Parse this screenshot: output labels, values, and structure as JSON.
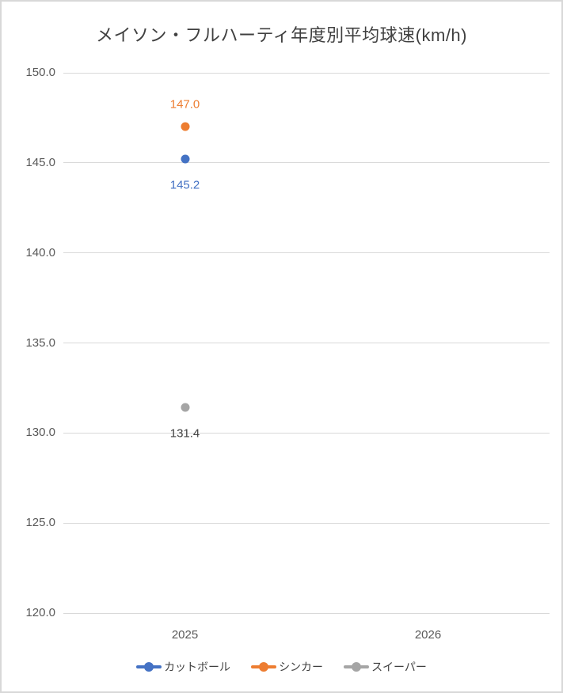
{
  "chart_data": {
    "type": "scatter",
    "title": "メイソン・フルハーティ年度別平均球速(km/h)",
    "categories": [
      "2025",
      "2026"
    ],
    "series": [
      {
        "name": "カットボール",
        "color": "#4472c4",
        "values": [
          145.2,
          null
        ],
        "data_labels": [
          "145.2",
          null
        ],
        "label_position": "below",
        "label_color": "#4472c4"
      },
      {
        "name": "シンカー",
        "color": "#ed7d31",
        "values": [
          147.0,
          null
        ],
        "data_labels": [
          "147.0",
          null
        ],
        "label_position": "above",
        "label_color": "#ed7d31"
      },
      {
        "name": "スイーパー",
        "color": "#a5a5a5",
        "values": [
          131.4,
          null
        ],
        "data_labels": [
          "131.4",
          null
        ],
        "label_position": "below",
        "label_color": "#404040"
      }
    ],
    "xlabel": "",
    "ylabel": "",
    "ylim": [
      120,
      150
    ],
    "ytick_step": 5,
    "ytick_labels": [
      "150.0",
      "145.0",
      "140.0",
      "135.0",
      "130.0",
      "125.0",
      "120.0"
    ],
    "grid": true,
    "legend_position": "bottom"
  },
  "palette": {
    "grid_color": "#d9d9d9",
    "axis_text_color": "#595959",
    "title_color": "#404040",
    "frame_border_color": "#d8d8d8",
    "background": "#ffffff"
  }
}
